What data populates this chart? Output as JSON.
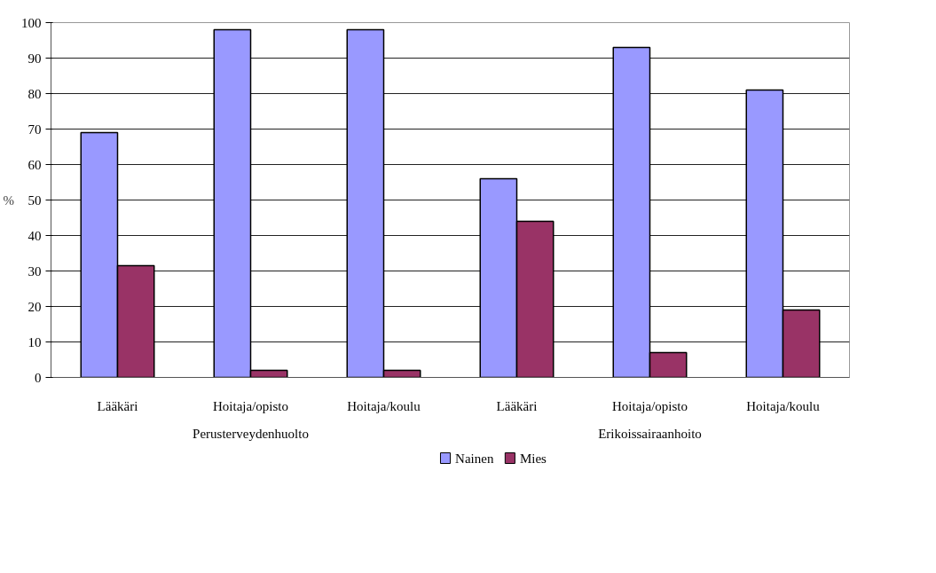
{
  "chart_data": {
    "type": "bar",
    "ylabel": "%",
    "categories": [
      "Lääkäri",
      "Hoitaja/opisto",
      "Hoitaja/koulu",
      "Lääkäri",
      "Hoitaja/opisto",
      "Hoitaja/koulu"
    ],
    "series": [
      {
        "name": "Nainen",
        "color": "#9999ff",
        "values": [
          69,
          98,
          98,
          56,
          93,
          81
        ]
      },
      {
        "name": "Mies",
        "color": "#993366",
        "values": [
          31.5,
          2,
          2,
          44,
          7,
          19
        ]
      }
    ],
    "annotations": [
      "Perusterveydenhuolto",
      "Erikoissairaanhoito"
    ],
    "ylim": [
      0,
      100
    ],
    "yticks": [
      0,
      10,
      20,
      30,
      40,
      50,
      60,
      70,
      80,
      90,
      100
    ],
    "grid": "y",
    "legend": "bottom"
  }
}
